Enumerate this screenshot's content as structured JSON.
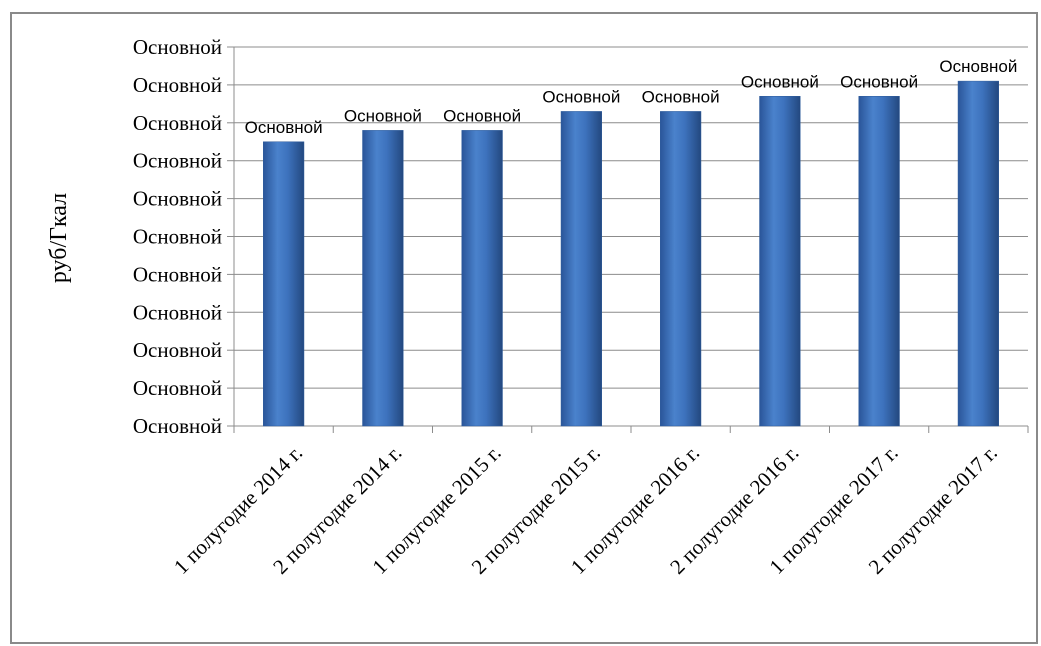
{
  "chart_data": {
    "type": "bar",
    "title": "",
    "xlabel": "",
    "ylabel": "руб/Гкал",
    "categories": [
      "1 полугодие 2014 г.",
      "2 полугодие 2014 г.",
      "1 полугодие 2015 г.",
      "2 полугодие 2015 г.",
      "1 полугодие 2016 г.",
      "2 полугодие 2016 г.",
      "1 полугодие 2017 г.",
      "2 полугодие 2017 г."
    ],
    "values": [
      7.5,
      7.8,
      7.8,
      8.3,
      8.3,
      8.7,
      8.7,
      9.1
    ],
    "data_labels": [
      "Основной",
      "Основной",
      "Основной",
      "Основной",
      "Основной",
      "Основной",
      "Основной",
      "Основной"
    ],
    "yticks": [
      "Основной",
      "Основной",
      "Основной",
      "Основной",
      "Основной",
      "Основной",
      "Основной",
      "Основной",
      "Основной",
      "Основной",
      "Основной"
    ],
    "ylim": [
      0,
      10
    ],
    "grid": true,
    "legend": "none",
    "bar_color": "#3d72bd"
  }
}
